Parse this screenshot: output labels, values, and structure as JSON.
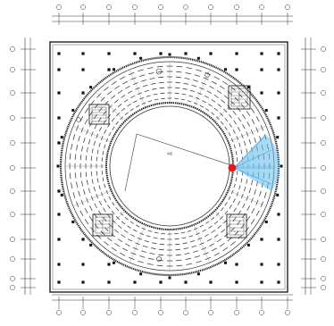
{
  "plan": {
    "center_label": "中庭",
    "marker_color": "#e01b1b",
    "sensor_color": "#5bb8ea",
    "line_color": "#222222",
    "column_color": "#111111"
  }
}
